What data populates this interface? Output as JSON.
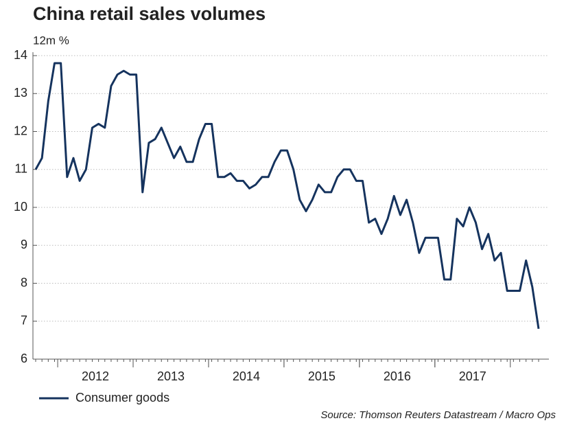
{
  "chart_data": {
    "type": "line",
    "title": "China retail sales volumes",
    "y_label": "12m %",
    "source": "Source: Thomson Reuters Datastream / Macro Ops",
    "categories": [
      null,
      null,
      null,
      null,
      null,
      null,
      null,
      null,
      null,
      null,
      "2012",
      null,
      null,
      null,
      null,
      null,
      null,
      null,
      null,
      null,
      null,
      null,
      "2013",
      null,
      null,
      null,
      null,
      null,
      null,
      null,
      null,
      null,
      null,
      null,
      "2014",
      null,
      null,
      null,
      null,
      null,
      null,
      null,
      null,
      null,
      null,
      null,
      "2015",
      null,
      null,
      null,
      null,
      null,
      null,
      null,
      null,
      null,
      null,
      null,
      "2016",
      null,
      null,
      null,
      null,
      null,
      null,
      null,
      null,
      null,
      null,
      null,
      "2017",
      null,
      null,
      null,
      null,
      null,
      null,
      null,
      null,
      null,
      null
    ],
    "series": [
      {
        "name": "Consumer goods",
        "color": "#15335e",
        "values": [
          11.0,
          11.3,
          12.8,
          13.8,
          13.8,
          10.8,
          11.3,
          10.7,
          11.0,
          12.1,
          12.2,
          12.1,
          13.2,
          13.5,
          13.6,
          13.5,
          13.5,
          10.4,
          11.7,
          11.8,
          12.1,
          11.7,
          11.3,
          11.6,
          11.2,
          11.2,
          11.8,
          12.2,
          12.2,
          10.8,
          10.8,
          10.9,
          10.7,
          10.7,
          10.5,
          10.6,
          10.8,
          10.8,
          11.2,
          11.5,
          11.5,
          11.0,
          10.2,
          9.9,
          10.2,
          10.6,
          10.4,
          10.4,
          10.8,
          11.0,
          11.0,
          10.7,
          10.7,
          9.6,
          9.7,
          9.3,
          9.7,
          10.3,
          9.8,
          10.2,
          9.6,
          8.8,
          9.2,
          9.2,
          9.2,
          8.1,
          8.1,
          9.7,
          9.5,
          10.0,
          9.6,
          8.9,
          9.3,
          8.6,
          8.8,
          7.8,
          7.8,
          7.8,
          8.6,
          7.9,
          6.8
        ]
      }
    ],
    "ylim": [
      6,
      14
    ],
    "yticks": [
      6,
      7,
      8,
      9,
      10,
      11,
      12,
      13,
      14
    ],
    "grid": true
  }
}
